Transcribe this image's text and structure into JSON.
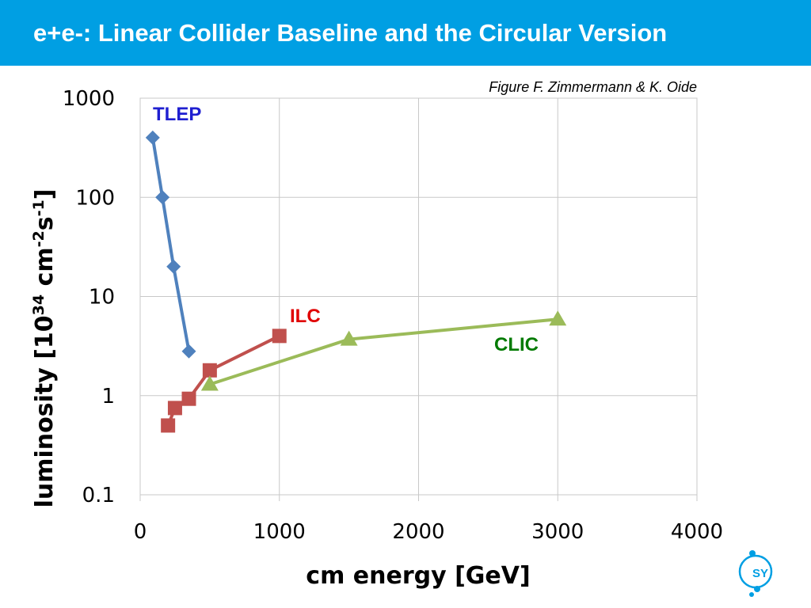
{
  "slide": {
    "title": "e+e-: Linear Collider Baseline and the Circular Version",
    "credit": "Figure F. Zimmermann & K. Oide"
  },
  "colors": {
    "header_bg": "#009fe3",
    "tlep": "#4f81bd",
    "ilc": "#c0504d",
    "clic": "#9bbb59",
    "tlep_label": "#1f1fd0",
    "ilc_label": "#e00000",
    "clic_label": "#007a00",
    "grid": "#c8c8c8"
  },
  "chart_data": {
    "type": "line",
    "xlabel": "cm energy [GeV]",
    "ylabel_parts": [
      "luminosity [10",
      "34",
      " cm",
      "-2",
      "s",
      "-1",
      "]"
    ],
    "xlim": [
      0,
      4000
    ],
    "ylim": [
      0.1,
      1000
    ],
    "yscale": "log",
    "grid": true,
    "x_ticks": [
      "0",
      "1000",
      "2000",
      "3000",
      "4000"
    ],
    "y_ticks": [
      "1000",
      "100",
      "10",
      "1",
      "0.1"
    ],
    "series": [
      {
        "name": "TLEP",
        "marker": "diamond",
        "color": "#4f81bd",
        "label_color": "#1f1fd0",
        "points": [
          [
            90,
            400
          ],
          [
            160,
            100
          ],
          [
            240,
            20
          ],
          [
            350,
            2.8
          ]
        ]
      },
      {
        "name": "ILC",
        "marker": "square",
        "color": "#c0504d",
        "label_color": "#e00000",
        "points": [
          [
            200,
            0.5
          ],
          [
            250,
            0.75
          ],
          [
            350,
            0.93
          ],
          [
            500,
            1.8
          ],
          [
            1000,
            4
          ]
        ]
      },
      {
        "name": "CLIC",
        "marker": "triangle",
        "color": "#9bbb59",
        "label_color": "#007a00",
        "points": [
          [
            500,
            1.3
          ],
          [
            1500,
            3.7
          ],
          [
            3000,
            5.9
          ]
        ]
      }
    ]
  }
}
